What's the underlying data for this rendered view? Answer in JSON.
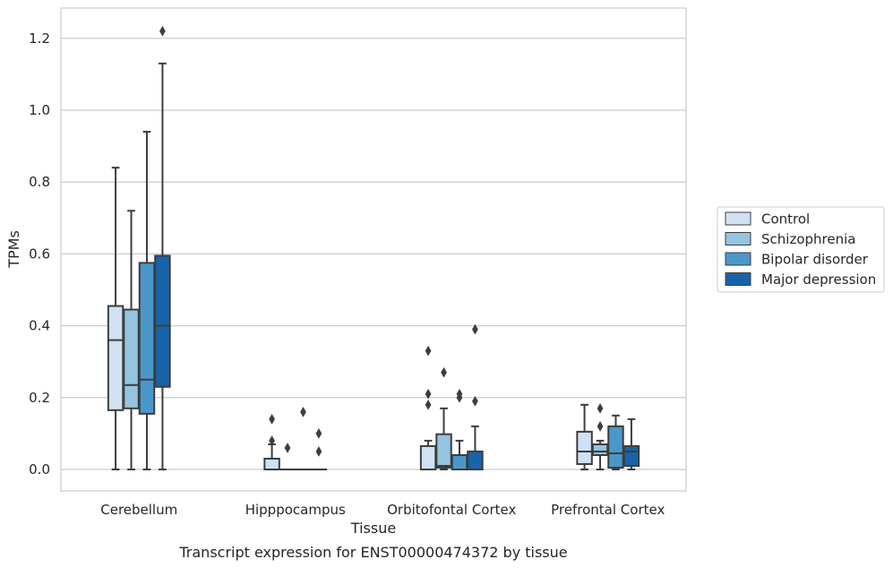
{
  "chart_data": {
    "type": "box",
    "xlabel": "Tissue",
    "ylabel": "TPMs",
    "caption": "Transcript expression for ENST00000474372 by tissue",
    "ylim": [
      -0.06,
      1.28
    ],
    "yticks": [
      0.0,
      0.2,
      0.4,
      0.6,
      0.8,
      1.0,
      1.2
    ],
    "ytick_labels": [
      "0.0",
      "0.2",
      "0.4",
      "0.6",
      "0.8",
      "1.0",
      "1.2"
    ],
    "grid": "horizontal",
    "legend_position": "right",
    "categories": [
      "Cerebellum",
      "Hipppocampus",
      "Orbitofontal Cortex",
      "Prefrontal Cortex"
    ],
    "series": [
      {
        "name": "Control",
        "color": "#d0e1f2",
        "boxes": [
          {
            "whislo": 0.0,
            "q1": 0.165,
            "med": 0.36,
            "q3": 0.455,
            "whishi": 0.84,
            "fliers": []
          },
          {
            "whislo": 0.0,
            "q1": 0.0,
            "med": 0.0,
            "q3": 0.03,
            "whishi": 0.07,
            "fliers": [
              0.08,
              0.14
            ]
          },
          {
            "whislo": 0.0,
            "q1": 0.0,
            "med": 0.0,
            "q3": 0.065,
            "whishi": 0.08,
            "fliers": [
              0.18,
              0.21,
              0.33
            ]
          },
          {
            "whislo": 0.0,
            "q1": 0.015,
            "med": 0.05,
            "q3": 0.105,
            "whishi": 0.18,
            "fliers": []
          }
        ]
      },
      {
        "name": "Schizophrenia",
        "color": "#94c4df",
        "boxes": [
          {
            "whislo": 0.0,
            "q1": 0.17,
            "med": 0.235,
            "q3": 0.445,
            "whishi": 0.72,
            "fliers": []
          },
          {
            "whislo": 0.0,
            "q1": 0.0,
            "med": 0.0,
            "q3": 0.0,
            "whishi": 0.0,
            "fliers": [
              0.06
            ]
          },
          {
            "whislo": 0.0,
            "q1": 0.005,
            "med": 0.01,
            "q3": 0.098,
            "whishi": 0.17,
            "fliers": [
              0.27
            ]
          },
          {
            "whislo": 0.0,
            "q1": 0.04,
            "med": 0.05,
            "q3": 0.07,
            "whishi": 0.08,
            "fliers": [
              0.12,
              0.17
            ]
          }
        ]
      },
      {
        "name": "Bipolar disorder",
        "color": "#4a98c9",
        "boxes": [
          {
            "whislo": 0.0,
            "q1": 0.155,
            "med": 0.25,
            "q3": 0.575,
            "whishi": 0.94,
            "fliers": []
          },
          {
            "whislo": 0.0,
            "q1": 0.0,
            "med": 0.0,
            "q3": 0.0,
            "whishi": 0.0,
            "fliers": [
              0.16
            ]
          },
          {
            "whislo": 0.0,
            "q1": 0.0,
            "med": 0.0,
            "q3": 0.04,
            "whishi": 0.08,
            "fliers": [
              0.2,
              0.21
            ]
          },
          {
            "whislo": 0.0,
            "q1": 0.005,
            "med": 0.045,
            "q3": 0.12,
            "whishi": 0.15,
            "fliers": []
          }
        ]
      },
      {
        "name": "Major depression",
        "color": "#1764ab",
        "boxes": [
          {
            "whislo": 0.0,
            "q1": 0.23,
            "med": 0.4,
            "q3": 0.595,
            "whishi": 1.13,
            "fliers": [
              1.22
            ]
          },
          {
            "whislo": 0.0,
            "q1": 0.0,
            "med": 0.0,
            "q3": 0.0,
            "whishi": 0.0,
            "fliers": [
              0.05,
              0.1
            ]
          },
          {
            "whislo": 0.0,
            "q1": 0.0,
            "med": 0.0,
            "q3": 0.05,
            "whishi": 0.12,
            "fliers": [
              0.19,
              0.39
            ]
          },
          {
            "whislo": 0.0,
            "q1": 0.01,
            "med": 0.05,
            "q3": 0.065,
            "whishi": 0.14,
            "fliers": []
          }
        ]
      }
    ]
  }
}
